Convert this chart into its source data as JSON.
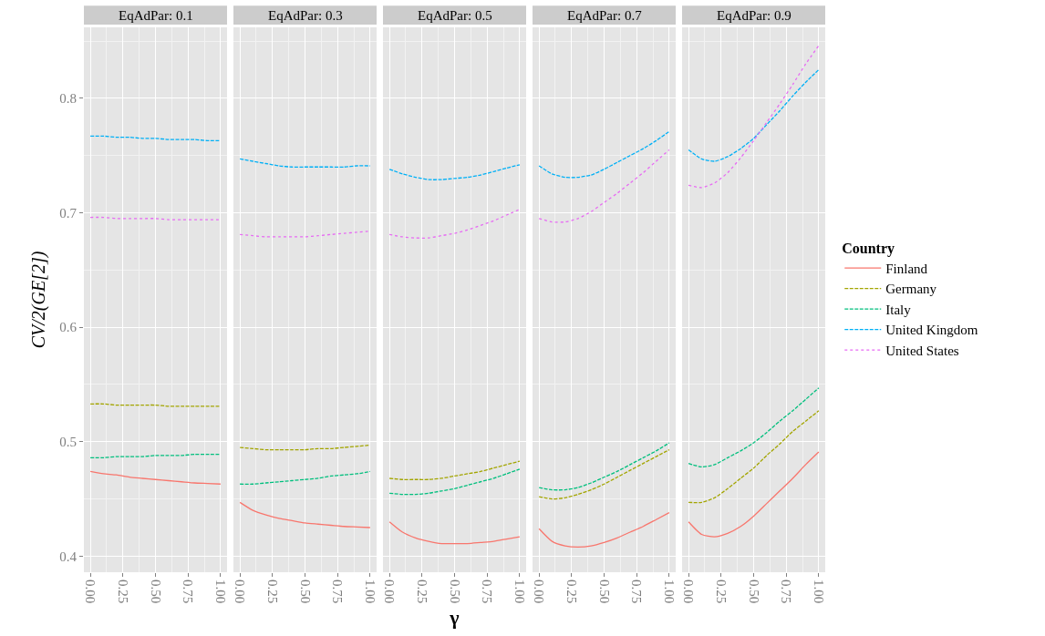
{
  "chart_data": [
    {
      "type": "line",
      "title": "EqAdPar: 0.1",
      "ylabel": "CV/2(GE[2])",
      "legend_title": "Country",
      "legend": "right",
      "grid": true,
      "tick_labels": true,
      "xlim": [
        -0.05,
        1.05
      ],
      "xticks": [
        {
          "value": 0,
          "label": "0.00"
        },
        {
          "value": 0.25,
          "label": "0.25"
        },
        {
          "value": 0.5,
          "label": "0.50"
        },
        {
          "value": 0.75,
          "label": "0.75"
        },
        {
          "value": 1,
          "label": "1.00"
        }
      ],
      "ylim": [
        0.386,
        0.862
      ],
      "yticks": [
        0.4,
        0.5,
        0.6,
        0.7,
        0.8
      ],
      "x": [
        0,
        0.1,
        0.2,
        0.3,
        0.4,
        0.5,
        0.6,
        0.7,
        0.8,
        0.9,
        1
      ],
      "series": [
        {
          "name": "Finland",
          "color": "#f8766d",
          "line_style": "solid",
          "values": [
            0.474,
            0.472,
            0.471,
            0.469,
            0.468,
            0.467,
            0.466,
            0.465,
            0.464,
            0.4635,
            0.463
          ]
        },
        {
          "name": "Germany",
          "color": "#a3a500",
          "line_style": "dashed",
          "values": [
            0.533,
            0.533,
            0.532,
            0.532,
            0.532,
            0.532,
            0.531,
            0.531,
            0.531,
            0.531,
            0.531
          ]
        },
        {
          "name": "Italy",
          "color": "#00bf7d",
          "line_style": "dashed",
          "values": [
            0.486,
            0.486,
            0.487,
            0.487,
            0.487,
            0.488,
            0.488,
            0.488,
            0.489,
            0.489,
            0.489
          ]
        },
        {
          "name": "United Kingdom",
          "color": "#00b0f6",
          "line_style": "dashed",
          "values": [
            0.767,
            0.767,
            0.766,
            0.766,
            0.765,
            0.765,
            0.764,
            0.764,
            0.764,
            0.763,
            0.763
          ]
        },
        {
          "name": "United States",
          "color": "#e76bf3",
          "line_style": "dotted",
          "values": [
            0.696,
            0.696,
            0.695,
            0.695,
            0.695,
            0.695,
            0.694,
            0.694,
            0.694,
            0.694,
            0.694
          ]
        }
      ]
    },
    {
      "type": "line",
      "title": "EqAdPar: 0.3",
      "grid": true,
      "tick_labels": "x",
      "xlim": [
        -0.05,
        1.05
      ],
      "xticks": [
        {
          "value": 0,
          "label": "0.00"
        },
        {
          "value": 0.25,
          "label": "0.25"
        },
        {
          "value": 0.5,
          "label": "0.50"
        },
        {
          "value": 0.75,
          "label": "0.75"
        },
        {
          "value": 1,
          "label": "1.00"
        }
      ],
      "ylim": [
        0.386,
        0.862
      ],
      "yticks": [
        0.4,
        0.5,
        0.6,
        0.7,
        0.8
      ],
      "x": [
        0,
        0.1,
        0.2,
        0.3,
        0.4,
        0.5,
        0.6,
        0.7,
        0.8,
        0.9,
        1
      ],
      "series": [
        {
          "color": "#f8766d",
          "line_style": "solid",
          "values": [
            0.447,
            0.44,
            0.436,
            0.433,
            0.431,
            0.429,
            0.428,
            0.427,
            0.426,
            0.4255,
            0.425
          ]
        },
        {
          "color": "#a3a500",
          "line_style": "dashed",
          "values": [
            0.495,
            0.494,
            0.493,
            0.493,
            0.493,
            0.493,
            0.494,
            0.494,
            0.495,
            0.496,
            0.497
          ]
        },
        {
          "color": "#00bf7d",
          "line_style": "dashed",
          "values": [
            0.463,
            0.463,
            0.464,
            0.465,
            0.466,
            0.467,
            0.468,
            0.47,
            0.471,
            0.472,
            0.474
          ]
        },
        {
          "color": "#00b0f6",
          "line_style": "dashed",
          "values": [
            0.747,
            0.745,
            0.743,
            0.741,
            0.74,
            0.74,
            0.74,
            0.74,
            0.74,
            0.741,
            0.741
          ]
        },
        {
          "color": "#e76bf3",
          "line_style": "dotted",
          "values": [
            0.681,
            0.68,
            0.679,
            0.679,
            0.679,
            0.679,
            0.68,
            0.681,
            0.682,
            0.683,
            0.684
          ]
        }
      ]
    },
    {
      "type": "line",
      "title": "EqAdPar: 0.5",
      "xlabel": "γ",
      "grid": true,
      "tick_labels": "x",
      "xlim": [
        -0.05,
        1.05
      ],
      "xticks": [
        {
          "value": 0,
          "label": "0.00"
        },
        {
          "value": 0.25,
          "label": "0.25"
        },
        {
          "value": 0.5,
          "label": "0.50"
        },
        {
          "value": 0.75,
          "label": "0.75"
        },
        {
          "value": 1,
          "label": "1.00"
        }
      ],
      "ylim": [
        0.386,
        0.862
      ],
      "yticks": [
        0.4,
        0.5,
        0.6,
        0.7,
        0.8
      ],
      "x": [
        0,
        0.1,
        0.2,
        0.3,
        0.4,
        0.5,
        0.6,
        0.7,
        0.8,
        0.9,
        1
      ],
      "series": [
        {
          "color": "#f8766d",
          "line_style": "solid",
          "values": [
            0.43,
            0.421,
            0.416,
            0.413,
            0.411,
            0.411,
            0.411,
            0.412,
            0.413,
            0.415,
            0.417
          ]
        },
        {
          "color": "#a3a500",
          "line_style": "dashed",
          "values": [
            0.468,
            0.467,
            0.467,
            0.467,
            0.468,
            0.47,
            0.472,
            0.474,
            0.477,
            0.48,
            0.483
          ]
        },
        {
          "color": "#00bf7d",
          "line_style": "dashed",
          "values": [
            0.455,
            0.454,
            0.454,
            0.455,
            0.457,
            0.459,
            0.462,
            0.465,
            0.468,
            0.472,
            0.476
          ]
        },
        {
          "color": "#00b0f6",
          "line_style": "dashed",
          "values": [
            0.738,
            0.734,
            0.731,
            0.729,
            0.729,
            0.73,
            0.731,
            0.733,
            0.736,
            0.739,
            0.742
          ]
        },
        {
          "color": "#e76bf3",
          "line_style": "dotted",
          "values": [
            0.681,
            0.679,
            0.678,
            0.678,
            0.68,
            0.682,
            0.685,
            0.689,
            0.693,
            0.698,
            0.703
          ]
        }
      ]
    },
    {
      "type": "line",
      "title": "EqAdPar: 0.7",
      "grid": true,
      "tick_labels": "x",
      "xlim": [
        -0.05,
        1.05
      ],
      "xticks": [
        {
          "value": 0,
          "label": "0.00"
        },
        {
          "value": 0.25,
          "label": "0.25"
        },
        {
          "value": 0.5,
          "label": "0.50"
        },
        {
          "value": 0.75,
          "label": "0.75"
        },
        {
          "value": 1,
          "label": "1.00"
        }
      ],
      "ylim": [
        0.386,
        0.862
      ],
      "yticks": [
        0.4,
        0.5,
        0.6,
        0.7,
        0.8
      ],
      "x": [
        0,
        0.1,
        0.2,
        0.3,
        0.4,
        0.5,
        0.6,
        0.7,
        0.8,
        0.9,
        1
      ],
      "series": [
        {
          "color": "#f8766d",
          "line_style": "solid",
          "values": [
            0.424,
            0.413,
            0.409,
            0.408,
            0.409,
            0.412,
            0.416,
            0.421,
            0.426,
            0.432,
            0.438
          ]
        },
        {
          "color": "#a3a500",
          "line_style": "dashed",
          "values": [
            0.452,
            0.45,
            0.451,
            0.454,
            0.458,
            0.463,
            0.469,
            0.475,
            0.481,
            0.487,
            0.493
          ]
        },
        {
          "color": "#00bf7d",
          "line_style": "dashed",
          "values": [
            0.46,
            0.458,
            0.458,
            0.46,
            0.464,
            0.469,
            0.474,
            0.48,
            0.486,
            0.492,
            0.499
          ]
        },
        {
          "color": "#00b0f6",
          "line_style": "dashed",
          "values": [
            0.741,
            0.734,
            0.731,
            0.731,
            0.733,
            0.738,
            0.744,
            0.75,
            0.756,
            0.763,
            0.771
          ]
        },
        {
          "color": "#e76bf3",
          "line_style": "dotted",
          "values": [
            0.695,
            0.692,
            0.692,
            0.695,
            0.701,
            0.709,
            0.717,
            0.726,
            0.735,
            0.745,
            0.755
          ]
        }
      ]
    },
    {
      "type": "line",
      "title": "EqAdPar: 0.9",
      "grid": true,
      "tick_labels": "x",
      "xlim": [
        -0.05,
        1.05
      ],
      "xticks": [
        {
          "value": 0,
          "label": "0.00"
        },
        {
          "value": 0.25,
          "label": "0.25"
        },
        {
          "value": 0.5,
          "label": "0.50"
        },
        {
          "value": 0.75,
          "label": "0.75"
        },
        {
          "value": 1,
          "label": "1.00"
        }
      ],
      "ylim": [
        0.386,
        0.862
      ],
      "yticks": [
        0.4,
        0.5,
        0.6,
        0.7,
        0.8
      ],
      "x": [
        0,
        0.1,
        0.2,
        0.3,
        0.4,
        0.5,
        0.6,
        0.7,
        0.8,
        0.9,
        1
      ],
      "series": [
        {
          "color": "#f8766d",
          "line_style": "solid",
          "values": [
            0.43,
            0.419,
            0.417,
            0.42,
            0.426,
            0.435,
            0.446,
            0.457,
            0.468,
            0.48,
            0.491
          ]
        },
        {
          "color": "#a3a500",
          "line_style": "dashed",
          "values": [
            0.447,
            0.447,
            0.451,
            0.459,
            0.468,
            0.477,
            0.488,
            0.498,
            0.509,
            0.518,
            0.527
          ]
        },
        {
          "color": "#00bf7d",
          "line_style": "dashed",
          "values": [
            0.481,
            0.478,
            0.48,
            0.486,
            0.492,
            0.499,
            0.508,
            0.518,
            0.527,
            0.537,
            0.547
          ]
        },
        {
          "color": "#00b0f6",
          "line_style": "dashed",
          "values": [
            0.755,
            0.747,
            0.745,
            0.749,
            0.756,
            0.765,
            0.777,
            0.789,
            0.802,
            0.814,
            0.825
          ]
        },
        {
          "color": "#e76bf3",
          "line_style": "dotted",
          "values": [
            0.724,
            0.722,
            0.726,
            0.735,
            0.748,
            0.763,
            0.779,
            0.795,
            0.812,
            0.83,
            0.846
          ]
        }
      ]
    }
  ]
}
